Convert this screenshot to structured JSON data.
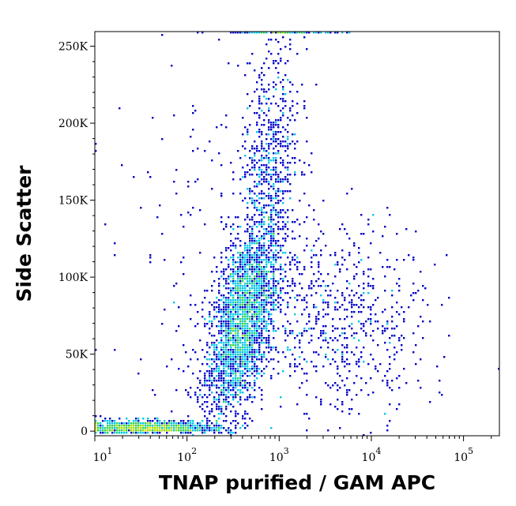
{
  "chart_data": {
    "type": "scatter",
    "subtype": "flow-cytometry density dot plot",
    "xlabel": "TNAP purified / GAM APC",
    "ylabel": "Side Scatter",
    "x_scale": "log",
    "xlim": [
      10,
      245000
    ],
    "ylim": [
      -3000,
      259500
    ],
    "x_ticks": [
      {
        "value": 10,
        "base": "10",
        "exp": "1"
      },
      {
        "value": 100,
        "base": "10",
        "exp": "2"
      },
      {
        "value": 1000,
        "base": "10",
        "exp": "3"
      },
      {
        "value": 10000,
        "base": "10",
        "exp": "4"
      },
      {
        "value": 100000,
        "base": "10",
        "exp": "5"
      }
    ],
    "y_ticks": [
      {
        "value": 0,
        "label": "0"
      },
      {
        "value": 50000,
        "label": "50K"
      },
      {
        "value": 100000,
        "label": "100K"
      },
      {
        "value": 150000,
        "label": "150K"
      },
      {
        "value": 200000,
        "label": "200K"
      },
      {
        "value": 250000,
        "label": "250K"
      }
    ],
    "density_colors": [
      "#0000c8",
      "#00c8e6",
      "#32d250",
      "#aadc00",
      "#f0e600",
      "#ff8c00",
      "#e61e00"
    ],
    "grid": false,
    "populations": [
      {
        "name": "main",
        "x_log_center": 2.6,
        "x_log_sd": 0.2,
        "y_center": 70000,
        "y_sd": 28000,
        "count": 2600,
        "slope": 90000
      },
      {
        "name": "upper-tail",
        "x_log_center": 2.9,
        "x_log_sd": 0.17,
        "y_center": 170000,
        "y_sd": 40000,
        "count": 650,
        "slope": 60000
      },
      {
        "name": "right-spread",
        "x_log_center": 3.7,
        "x_log_sd": 0.45,
        "y_center": 70000,
        "y_sd": 32000,
        "count": 650,
        "slope": 0
      },
      {
        "name": "debris",
        "x_log_center": 1.55,
        "x_log_sd": 0.38,
        "y_center": 2500,
        "y_sd": 2500,
        "count": 1100,
        "slope": 0
      },
      {
        "name": "saturated-top",
        "x_log_center": 3.1,
        "x_log_sd": 0.3,
        "y_center": 259000,
        "y_sd": 300,
        "count": 110,
        "slope": 0
      },
      {
        "name": "background",
        "x_log_center": 2.4,
        "x_log_sd": 0.6,
        "y_center": 110000,
        "y_sd": 60000,
        "count": 200,
        "slope": 0
      }
    ]
  }
}
